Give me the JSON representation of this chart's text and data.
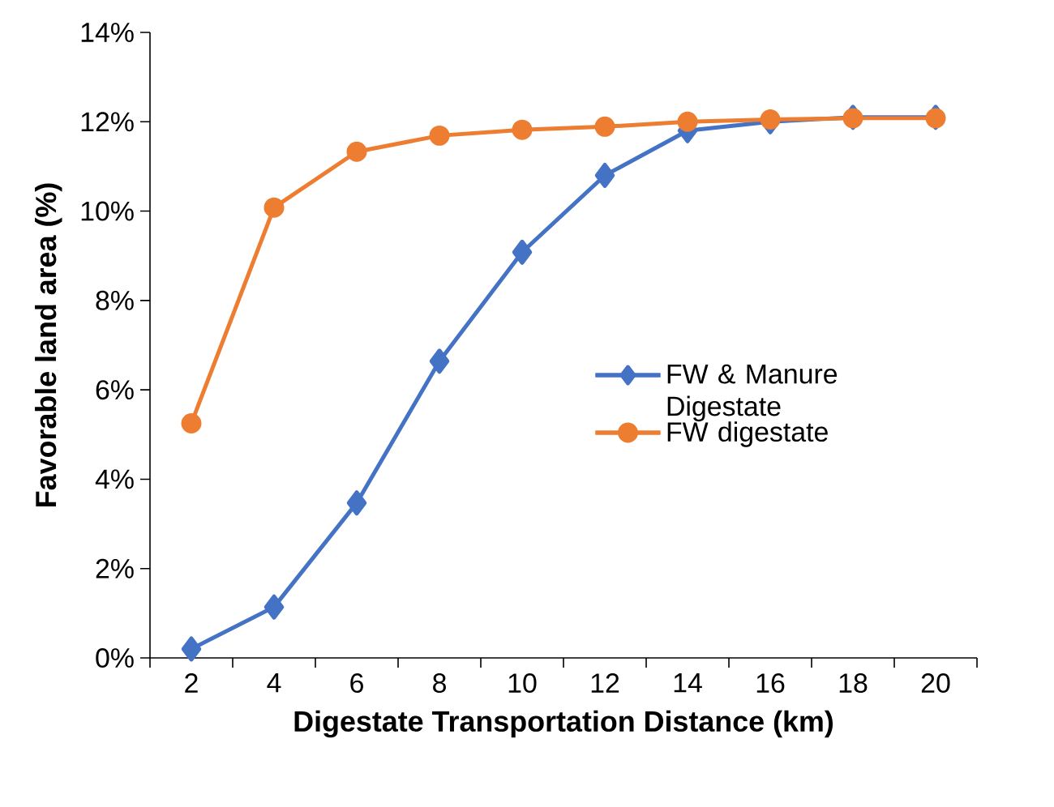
{
  "chart_data": {
    "type": "line",
    "xlabel": "Digestate Transportation Distance (km)",
    "ylabel": "Favorable land area (%)",
    "categories": [
      "2",
      "4",
      "6",
      "8",
      "10",
      "12",
      "14",
      "16",
      "18",
      "20"
    ],
    "series": [
      {
        "name": "FW & Manure Digestate",
        "color": "#4472c4",
        "marker": "diamond",
        "values": [
          0.2,
          1.14,
          3.47,
          6.64,
          9.08,
          10.8,
          11.8,
          12.0,
          12.1,
          12.1
        ]
      },
      {
        "name": "FW digestate",
        "color": "#ed7d31",
        "marker": "circle",
        "values": [
          5.25,
          10.08,
          11.33,
          11.69,
          11.82,
          11.89,
          12.0,
          12.05,
          12.08,
          12.08
        ]
      }
    ],
    "ylim": [
      0,
      14
    ],
    "yticks": [
      {
        "value": 0,
        "label": "0%"
      },
      {
        "value": 2,
        "label": "2%"
      },
      {
        "value": 4,
        "label": "4%"
      },
      {
        "value": 6,
        "label": "6%"
      },
      {
        "value": 8,
        "label": "8%"
      },
      {
        "value": 10,
        "label": "10%"
      },
      {
        "value": 12,
        "label": "12%"
      },
      {
        "value": 14,
        "label": "14%"
      }
    ],
    "grid": false,
    "legend": "right",
    "line_style": "solid"
  }
}
